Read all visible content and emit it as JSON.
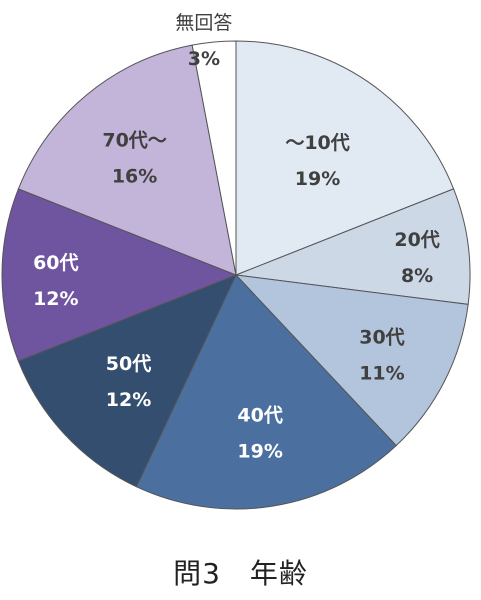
{
  "chart_data": {
    "type": "pie",
    "title": "問3　年齢",
    "start": "top",
    "direction": "clockwise",
    "slices": [
      {
        "label": "～10代",
        "value": 19,
        "display": "19%",
        "color": "#e1e9f3",
        "label_color": "#404040"
      },
      {
        "label": "20代",
        "value": 8,
        "display": "8%",
        "color": "#cdd8e7",
        "label_color": "#404040"
      },
      {
        "label": "30代",
        "value": 11,
        "display": "11%",
        "color": "#b2c5dc",
        "label_color": "#404040"
      },
      {
        "label": "40代",
        "value": 19,
        "display": "19%",
        "color": "#4b70a0",
        "label_color": "#ffffff"
      },
      {
        "label": "50代",
        "value": 12,
        "display": "12%",
        "color": "#344e70",
        "label_color": "#ffffff"
      },
      {
        "label": "60代",
        "value": 12,
        "display": "12%",
        "color": "#6f54a0",
        "label_color": "#ffffff"
      },
      {
        "label": "70代～",
        "value": 16,
        "display": "16%",
        "color": "#c3b5da",
        "label_color": "#404040"
      },
      {
        "label": "無回答",
        "value": 3,
        "display": "3%",
        "color": "#ffffff",
        "label_color": "#404040"
      }
    ]
  }
}
